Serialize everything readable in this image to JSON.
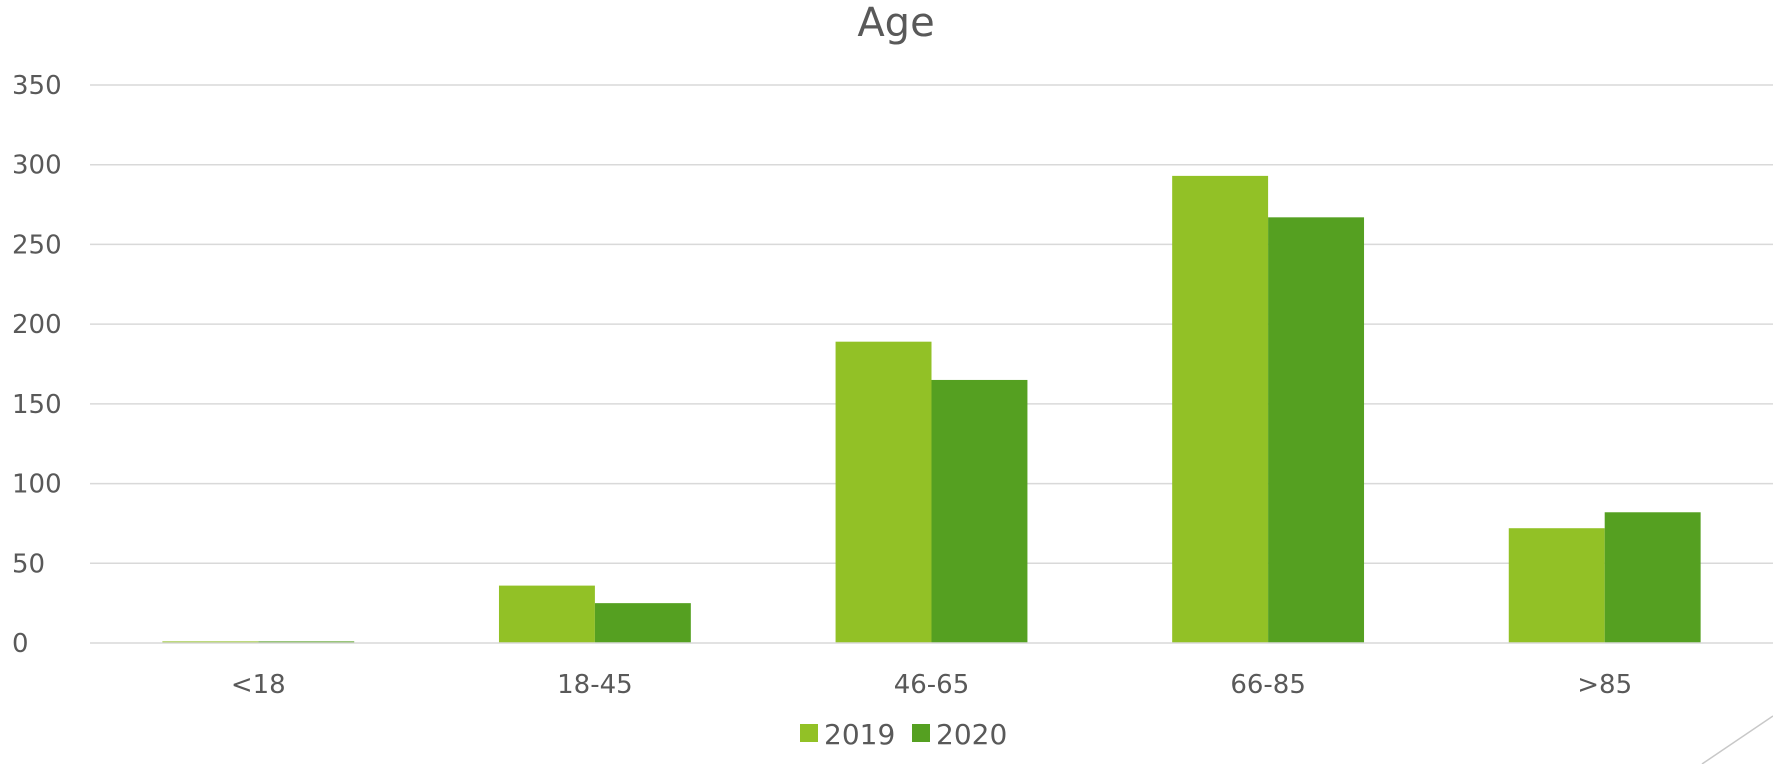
{
  "chart_data": {
    "type": "bar",
    "title": "Age",
    "xlabel": "",
    "ylabel": "",
    "categories": [
      "<18",
      "18-45",
      "46-65",
      "66-85",
      ">85"
    ],
    "series": [
      {
        "name": "2019",
        "values": [
          1,
          36,
          189,
          293,
          72
        ],
        "color": "#92c126"
      },
      {
        "name": "2020",
        "values": [
          1,
          25,
          165,
          267,
          82
        ],
        "color": "#55a021"
      }
    ],
    "ylim": [
      0,
      350
    ],
    "yticks": [
      "0",
      "50",
      "100",
      "150",
      "200",
      "250",
      "300",
      "350"
    ],
    "grid": true,
    "legend_position": "bottom"
  }
}
